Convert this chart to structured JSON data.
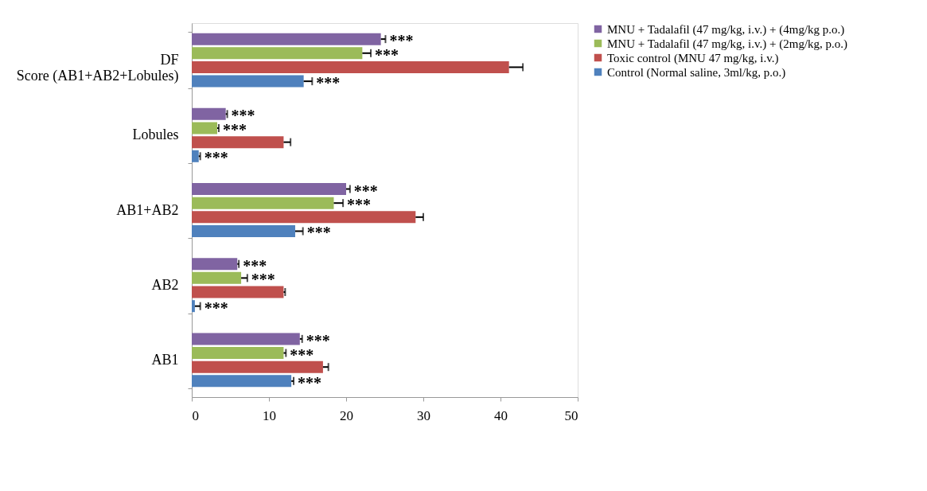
{
  "chart_data": {
    "type": "bar",
    "orientation": "horizontal",
    "categories": [
      "DF Score (AB1+AB2+Lobules)",
      "Lobules",
      "AB1+AB2",
      "AB2",
      "AB1"
    ],
    "series": [
      {
        "name": "MNU + Tadalafil (47 mg/kg, i.v.) + (4mg/kg p.o.)",
        "color": "#8064a2",
        "values": [
          24.5,
          4.4,
          20.0,
          5.9,
          14.0
        ],
        "errors": [
          [
            24.5,
            25.1
          ],
          [
            4.4,
            4.6
          ],
          [
            20.0,
            20.5
          ],
          [
            5.9,
            6.1
          ],
          [
            14.0,
            14.3
          ]
        ],
        "value_labels": [
          "***",
          "***",
          "***",
          "***",
          "***"
        ]
      },
      {
        "name": "MNU + Tadalafil (47 mg/kg, i.v.) + (2mg/kg, p.o.)",
        "color": "#9bbb59",
        "values": [
          22.1,
          3.3,
          18.4,
          6.4,
          11.9
        ],
        "errors": [
          [
            22.1,
            23.2
          ],
          [
            3.3,
            3.5
          ],
          [
            18.4,
            19.6
          ],
          [
            6.4,
            7.2
          ],
          [
            11.9,
            12.2
          ]
        ],
        "value_labels": [
          "***",
          "***",
          "***",
          "***",
          "***"
        ]
      },
      {
        "name": "Toxic control (MNU 47 mg/kg, i.v.)",
        "color": "#c0504d",
        "values": [
          41.1,
          11.9,
          29.0,
          11.9,
          17.0
        ],
        "errors": [
          [
            41.1,
            42.9
          ],
          [
            11.9,
            12.8
          ],
          [
            29.0,
            30.0
          ],
          [
            11.9,
            12.1
          ],
          [
            17.0,
            17.7
          ]
        ]
      },
      {
        "name": "Control (Normal saline, 3ml/kg, p.o.)",
        "color": "#4f81bd",
        "values": [
          14.5,
          0.9,
          13.4,
          0.4,
          12.9
        ],
        "errors": [
          [
            14.5,
            15.6
          ],
          [
            0.9,
            1.1
          ],
          [
            13.4,
            14.4
          ],
          [
            0.4,
            1.1
          ],
          [
            12.9,
            13.2
          ]
        ],
        "value_labels": [
          "***",
          "***",
          "***",
          "***",
          "***"
        ]
      }
    ],
    "xlim": [
      0,
      50
    ],
    "xticks": [
      0,
      10,
      20,
      30,
      40,
      50
    ],
    "grid": false,
    "legend": "right"
  }
}
